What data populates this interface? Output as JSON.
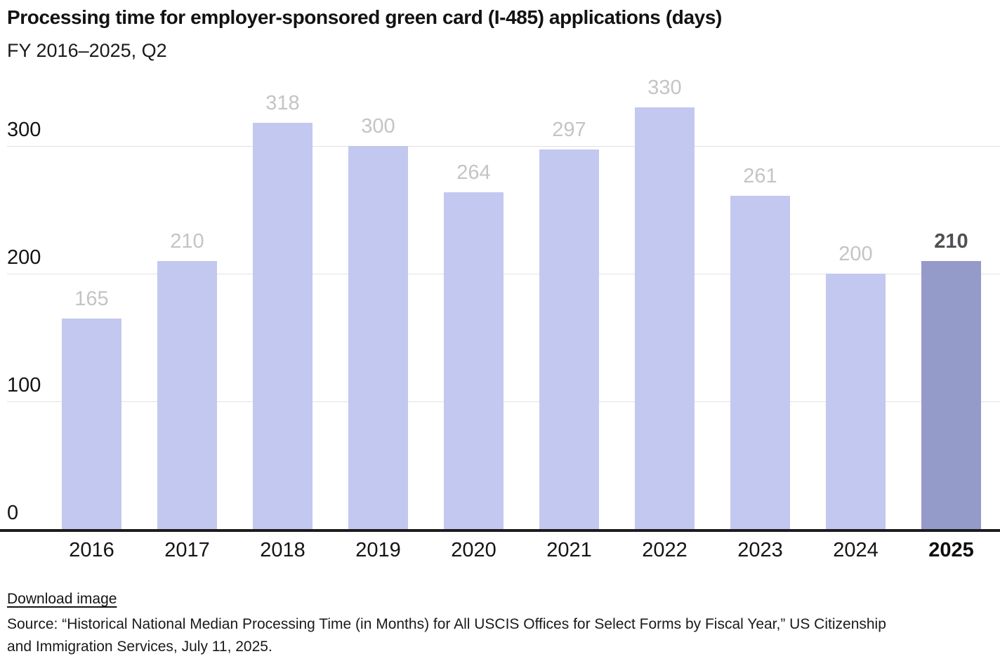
{
  "header": {
    "title": "Processing time for employer-sponsored green card (I-485) applications (days)",
    "subtitle": "FY 2016–2025, Q2"
  },
  "chart_data": {
    "type": "bar",
    "title": "Processing time for employer-sponsored green card (I-485) applications (days)",
    "subtitle": "FY 2016–2025, Q2",
    "categories": [
      "2016",
      "2017",
      "2018",
      "2019",
      "2020",
      "2021",
      "2022",
      "2023",
      "2024",
      "2025"
    ],
    "values": [
      165,
      210,
      318,
      300,
      264,
      297,
      330,
      261,
      200,
      210
    ],
    "highlight_index": 9,
    "xlabel": "",
    "ylabel": "",
    "yticks": [
      0,
      100,
      200,
      300
    ],
    "ylim": [
      0,
      359
    ],
    "grid": "horizontal",
    "legend": "none",
    "colors": {
      "bar": "#c3c8f0",
      "highlight_bar": "#949bc8",
      "value_label": "#c3c4c6",
      "highlight_value_label": "#4f5055",
      "axis_label": "#141414",
      "gridline": "#e2e2e2",
      "baseline": "#1c1c1c"
    }
  },
  "footer": {
    "download_label": "Download image",
    "source_line1": "Source: “Historical National Median Processing Time (in Months) for All USCIS Offices for Select Forms by Fiscal Year,” US Citizenship",
    "source_line2": "and Immigration Services, July 11, 2025."
  }
}
